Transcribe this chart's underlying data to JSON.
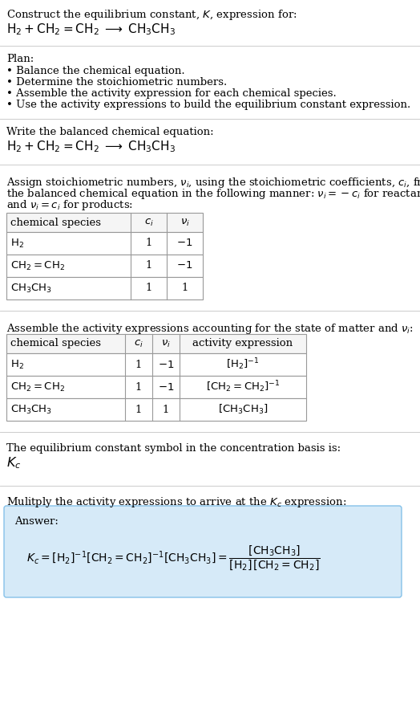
{
  "title_line1": "Construct the equilibrium constant, $K$, expression for:",
  "title_line2": "$\\mathrm{H_2 + CH_2{=}CH_2 \\;\\longrightarrow\\; CH_3CH_3}$",
  "plan_header": "Plan:",
  "plan_items": [
    "• Balance the chemical equation.",
    "• Determine the stoichiometric numbers.",
    "• Assemble the activity expression for each chemical species.",
    "• Use the activity expressions to build the equilibrium constant expression."
  ],
  "balanced_eq_header": "Write the balanced chemical equation:",
  "balanced_eq": "$\\mathrm{H_2 + CH_2{=}CH_2 \\;\\longrightarrow\\; CH_3CH_3}$",
  "stoich_header_parts": [
    "Assign stoichiometric numbers, $\\nu_i$, using the stoichiometric coefficients, $c_i$, from",
    "the balanced chemical equation in the following manner: $\\nu_i = -c_i$ for reactants",
    "and $\\nu_i = c_i$ for products:"
  ],
  "table1_headers": [
    "chemical species",
    "$c_i$",
    "$\\nu_i$"
  ],
  "table1_rows": [
    [
      "$\\mathrm{H_2}$",
      "1",
      "$-1$"
    ],
    [
      "$\\mathrm{CH_2{=}CH_2}$",
      "1",
      "$-1$"
    ],
    [
      "$\\mathrm{CH_3CH_3}$",
      "1",
      "1"
    ]
  ],
  "activity_header": "Assemble the activity expressions accounting for the state of matter and $\\nu_i$:",
  "table2_headers": [
    "chemical species",
    "$c_i$",
    "$\\nu_i$",
    "activity expression"
  ],
  "table2_rows": [
    [
      "$\\mathrm{H_2}$",
      "1",
      "$-1$",
      "$[\\mathrm{H_2}]^{-1}$"
    ],
    [
      "$\\mathrm{CH_2{=}CH_2}$",
      "1",
      "$-1$",
      "$[\\mathrm{CH_2{=}CH_2}]^{-1}$"
    ],
    [
      "$\\mathrm{CH_3CH_3}$",
      "1",
      "1",
      "$[\\mathrm{CH_3CH_3}]$"
    ]
  ],
  "kc_header": "The equilibrium constant symbol in the concentration basis is:",
  "kc_symbol": "$K_c$",
  "multiply_header": "Mulitply the activity expressions to arrive at the $K_c$ expression:",
  "answer_label": "Answer:",
  "bg_color": "#ffffff",
  "table_border": "#999999",
  "table_header_bg": "#ffffff",
  "table_row_bg": "#ffffff",
  "answer_box_bg": "#d6eaf8",
  "answer_box_border": "#85c1e9",
  "text_color": "#000000",
  "font_size": 9.5,
  "sep_color": "#cccccc"
}
